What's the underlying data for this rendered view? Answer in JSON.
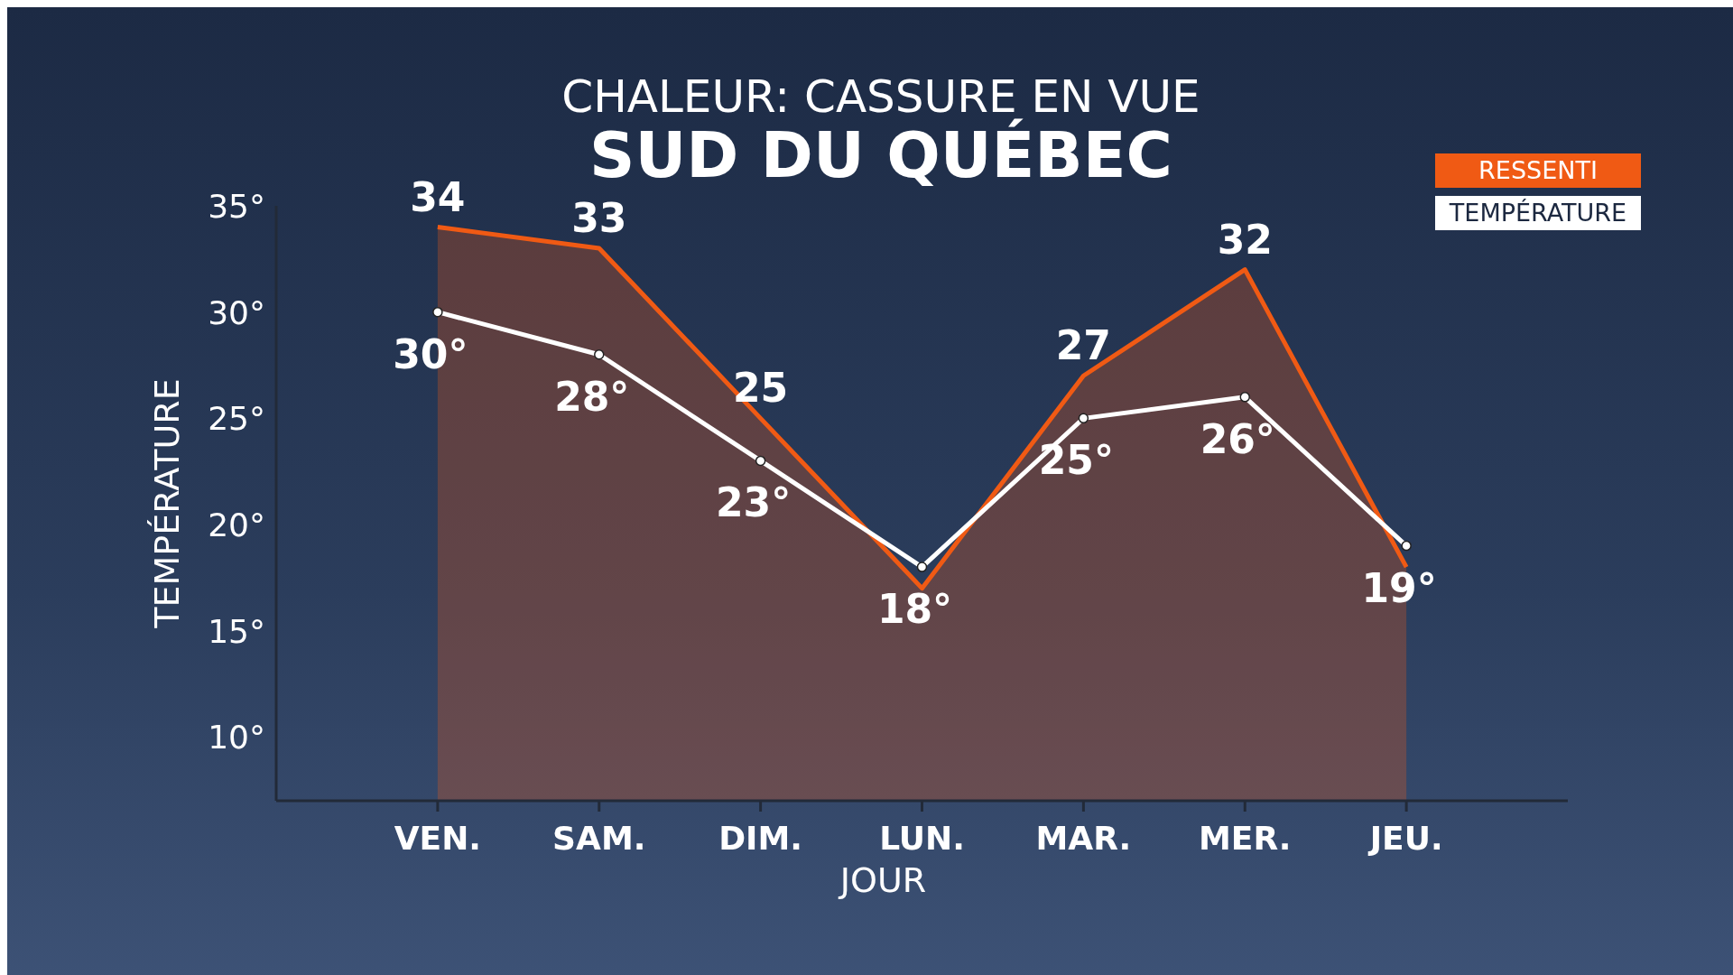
{
  "chart_data": {
    "type": "line",
    "title": "CHALEUR: CASSURE EN VUE",
    "subtitle": "SUD DU QUÉBEC",
    "xlabel": "JOUR",
    "ylabel": "TEMPÉRATURE",
    "categories": [
      "VEN.",
      "SAM.",
      "DIM.",
      "LUN.",
      "MAR.",
      "MER.",
      "JEU."
    ],
    "series": [
      {
        "name": "RESSENTI",
        "type": "area",
        "color": "#f05a14",
        "marker": "none",
        "values": [
          34,
          33,
          25,
          17,
          27,
          32,
          18
        ],
        "value_labels": [
          "34",
          "33",
          "25",
          null,
          "27",
          "32",
          null
        ]
      },
      {
        "name": "TEMPÉRATURE",
        "color": "#ffffff",
        "marker": "circle",
        "values": [
          30,
          28,
          23,
          18,
          25,
          26,
          19
        ],
        "value_labels": [
          "30°",
          "28°",
          "23°",
          "18°",
          "25°",
          "26°",
          "19°"
        ]
      }
    ],
    "ylim": [
      7,
      35
    ],
    "yticks": [
      {
        "value": 35,
        "label": "35°"
      },
      {
        "value": 30,
        "label": "30°"
      },
      {
        "value": 25,
        "label": "25°"
      },
      {
        "value": 20,
        "label": "20°"
      },
      {
        "value": 15,
        "label": "15°"
      },
      {
        "value": 10,
        "label": "10°"
      }
    ],
    "legend": "top right"
  }
}
